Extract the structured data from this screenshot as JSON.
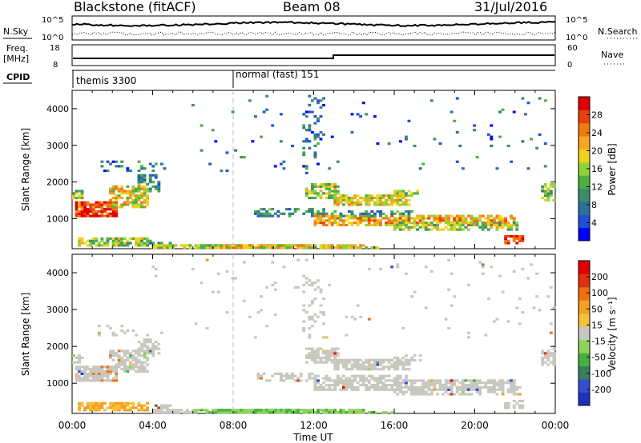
{
  "header": {
    "station": "Blackstone (fitACF)",
    "beam": "Beam 08",
    "date": "31/Jul/2016"
  },
  "status_panels": {
    "nsky_label": "N.Sky",
    "nsearch_label": "N.Search",
    "freq_label_top": "Freq.",
    "freq_label_unit": "[MHz]",
    "nave_label": "Nave",
    "cpid_label": "CPID",
    "left_ticks_top": [
      "10^5",
      "10^0"
    ],
    "right_ticks_top": [
      "10^5",
      "10^0"
    ],
    "freq_ticks": [
      "18",
      "8"
    ],
    "nave_ticks": [
      "60",
      "0"
    ],
    "cpid_segments": [
      {
        "label": "themis 3300",
        "start_hour": 0
      },
      {
        "label": "normal (fast) 151",
        "start_hour": 8
      }
    ]
  },
  "chart_data": [
    {
      "type": "heatmap",
      "name": "power",
      "xlabel": "Time UT",
      "ylabel": "Slant Range [km]",
      "ylim": [
        180,
        4500
      ],
      "y_ticks": [
        1000,
        2000,
        3000,
        4000
      ],
      "x_range_hours": [
        0,
        24
      ],
      "x_ticks": [
        "00:00",
        "04:00",
        "08:00",
        "12:00",
        "16:00",
        "20:00",
        "00:00"
      ],
      "colorbar_label": "Power [dB]",
      "colorbar_ticks": [
        4,
        8,
        12,
        16,
        20,
        24,
        28
      ],
      "colors": [
        "#0000ff",
        "#1f4fd8",
        "#2e6fa0",
        "#3c8c6a",
        "#4cb040",
        "#8fd33a",
        "#f2d21c",
        "#f5a623",
        "#f07a10",
        "#e84010",
        "#e00000"
      ]
    },
    {
      "type": "heatmap",
      "name": "velocity",
      "xlabel": "Time UT",
      "ylabel": "Slant Range [km]",
      "ylim": [
        180,
        4500
      ],
      "y_ticks": [
        1000,
        2000,
        3000,
        4000
      ],
      "x_range_hours": [
        0,
        24
      ],
      "x_ticks": [
        "00:00",
        "04:00",
        "08:00",
        "12:00",
        "16:00",
        "20:00",
        "00:00"
      ],
      "colorbar_label": "Velocity [m s⁻¹]",
      "colorbar_ticks": [
        "200",
        "100",
        "50",
        "15",
        "-15",
        "-50",
        "-100",
        "-200"
      ],
      "colors": [
        "#1f2fc0",
        "#3050d0",
        "#3a7f5a",
        "#44b040",
        "#8fd35a",
        "#c8c8c0",
        "#f5c040",
        "#f5a020",
        "#f07010",
        "#e03010",
        "#e00000"
      ]
    }
  ]
}
